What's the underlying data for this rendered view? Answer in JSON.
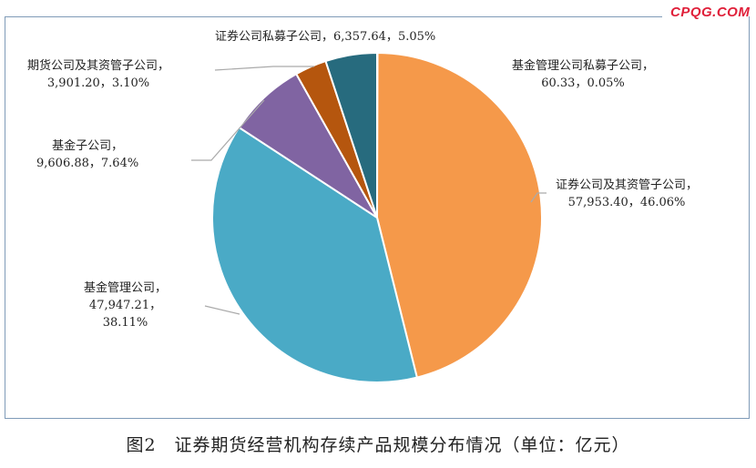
{
  "watermark": "CPQG.COM",
  "chart_data": {
    "type": "pie",
    "title": "图2　证券期货经营机构存续产品规模分布情况（单位：亿元）",
    "unit": "亿元",
    "start": "12 o'clock, clockwise",
    "slices": [
      {
        "name": "基金管理公司私募子公司",
        "value": 60.33,
        "value_label": "60.33",
        "percent": 0.05,
        "percent_label": "0.05%",
        "color": "#7fa6d0"
      },
      {
        "name": "证券公司及其资管子公司",
        "value": 57953.4,
        "value_label": "57,953.40",
        "percent": 46.06,
        "percent_label": "46.06%",
        "color": "#f5994a"
      },
      {
        "name": "基金管理公司",
        "value": 47947.21,
        "value_label": "47,947.21",
        "percent": 38.11,
        "percent_label": "38.11%",
        "color": "#4aaac6"
      },
      {
        "name": "基金子公司",
        "value": 9606.88,
        "value_label": "9,606.88",
        "percent": 7.64,
        "percent_label": "7.64%",
        "color": "#8064a2"
      },
      {
        "name": "期货公司及其资管子公司",
        "value": 3901.2,
        "value_label": "3,901.20",
        "percent": 3.1,
        "percent_label": "3.10%",
        "color": "#b5560e"
      },
      {
        "name": "证券公司私募子公司",
        "value": 6357.64,
        "value_label": "6,357.64",
        "percent": 5.05,
        "percent_label": "5.05%",
        "color": "#276b7e"
      }
    ]
  }
}
